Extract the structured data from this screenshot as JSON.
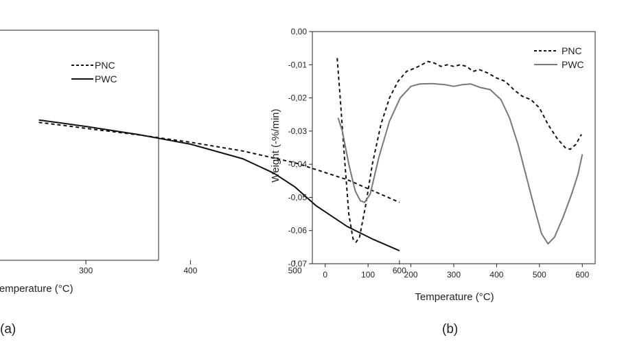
{
  "panels": {
    "a": {
      "label": "(a)"
    },
    "b": {
      "label": "(b)"
    }
  },
  "chart_data": [
    {
      "panel": "(a)",
      "type": "line",
      "xlabel": "Temperature (°C)",
      "ylabel": "",
      "x_ticks": [
        300,
        400,
        500,
        600
      ],
      "legend": {
        "position": "top-right",
        "entries": [
          "PNC",
          "PWC"
        ]
      },
      "series": [
        {
          "name": "PNC",
          "style": "dashed",
          "color": "#111111",
          "points": [
            [
              255,
              0.765
            ],
            [
              280,
              0.745
            ],
            [
              300,
              0.728
            ],
            [
              350,
              0.688
            ],
            [
              400,
              0.642
            ],
            [
              450,
              0.588
            ],
            [
              500,
              0.515
            ],
            [
              550,
              0.41
            ],
            [
              600,
              0.27
            ]
          ]
        },
        {
          "name": "PWC",
          "style": "solid",
          "color": "#111111",
          "points": [
            [
              255,
              0.78
            ],
            [
              280,
              0.758
            ],
            [
              300,
              0.74
            ],
            [
              350,
              0.69
            ],
            [
              400,
              0.63
            ],
            [
              450,
              0.54
            ],
            [
              480,
              0.45
            ],
            [
              500,
              0.365
            ],
            [
              520,
              0.25
            ],
            [
              550,
              0.12
            ],
            [
              575,
              0.04
            ],
            [
              600,
              -0.03
            ]
          ]
        }
      ]
    },
    {
      "panel": "(b)",
      "type": "line",
      "xlabel": "Temperature (°C)",
      "ylabel": "Weight (-%/min)",
      "xlim": [
        -30,
        630
      ],
      "ylim": [
        -0.07,
        0.0
      ],
      "x_ticks": [
        0,
        100,
        200,
        300,
        400,
        500,
        600
      ],
      "y_ticks": [
        0.0,
        -0.01,
        -0.02,
        -0.03,
        -0.04,
        -0.05,
        -0.06,
        -0.07
      ],
      "y_tick_labels": [
        "0,00",
        "-0,01",
        "-0,02",
        "-0,03",
        "-0,04",
        "-0,05",
        "-0,06",
        "-0,07"
      ],
      "legend": {
        "position": "top-right",
        "entries": [
          "PNC",
          "PWC"
        ]
      },
      "series": [
        {
          "name": "PNC",
          "style": "dashed",
          "color": "#111111",
          "points": [
            [
              28,
              -0.008
            ],
            [
              35,
              -0.02
            ],
            [
              45,
              -0.038
            ],
            [
              55,
              -0.055
            ],
            [
              65,
              -0.0625
            ],
            [
              72,
              -0.0635
            ],
            [
              80,
              -0.062
            ],
            [
              95,
              -0.052
            ],
            [
              110,
              -0.04
            ],
            [
              130,
              -0.028
            ],
            [
              150,
              -0.02
            ],
            [
              170,
              -0.015
            ],
            [
              190,
              -0.012
            ],
            [
              210,
              -0.011
            ],
            [
              225,
              -0.01
            ],
            [
              240,
              -0.009
            ],
            [
              255,
              -0.0095
            ],
            [
              270,
              -0.0105
            ],
            [
              285,
              -0.01
            ],
            [
              300,
              -0.0105
            ],
            [
              315,
              -0.01
            ],
            [
              330,
              -0.0105
            ],
            [
              345,
              -0.012
            ],
            [
              360,
              -0.0115
            ],
            [
              380,
              -0.0125
            ],
            [
              400,
              -0.014
            ],
            [
              420,
              -0.015
            ],
            [
              440,
              -0.0175
            ],
            [
              460,
              -0.0195
            ],
            [
              480,
              -0.0205
            ],
            [
              500,
              -0.023
            ],
            [
              520,
              -0.028
            ],
            [
              540,
              -0.032
            ],
            [
              560,
              -0.035
            ],
            [
              572,
              -0.0355
            ],
            [
              585,
              -0.034
            ],
            [
              598,
              -0.031
            ]
          ]
        },
        {
          "name": "PWC",
          "style": "solid",
          "color": "#777777",
          "points": [
            [
              30,
              -0.026
            ],
            [
              40,
              -0.03
            ],
            [
              55,
              -0.04
            ],
            [
              70,
              -0.048
            ],
            [
              82,
              -0.051
            ],
            [
              92,
              -0.0515
            ],
            [
              105,
              -0.049
            ],
            [
              125,
              -0.038
            ],
            [
              150,
              -0.027
            ],
            [
              175,
              -0.02
            ],
            [
              200,
              -0.0165
            ],
            [
              220,
              -0.0158
            ],
            [
              250,
              -0.0157
            ],
            [
              280,
              -0.016
            ],
            [
              300,
              -0.0165
            ],
            [
              320,
              -0.016
            ],
            [
              340,
              -0.0158
            ],
            [
              360,
              -0.0168
            ],
            [
              385,
              -0.0175
            ],
            [
              410,
              -0.0205
            ],
            [
              430,
              -0.026
            ],
            [
              450,
              -0.034
            ],
            [
              470,
              -0.044
            ],
            [
              490,
              -0.054
            ],
            [
              505,
              -0.061
            ],
            [
              520,
              -0.064
            ],
            [
              535,
              -0.062
            ],
            [
              555,
              -0.056
            ],
            [
              575,
              -0.049
            ],
            [
              590,
              -0.043
            ],
            [
              600,
              -0.037
            ]
          ]
        }
      ]
    }
  ]
}
